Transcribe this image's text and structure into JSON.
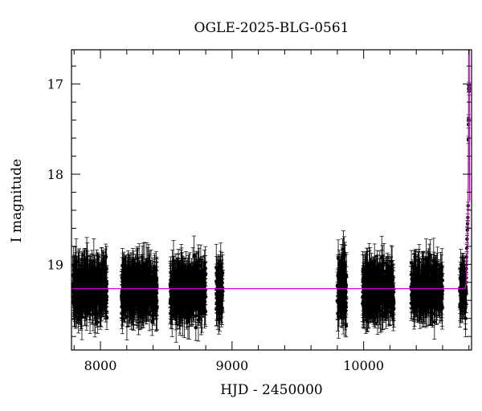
{
  "chart_data": {
    "type": "scatter",
    "title": "OGLE-2025-BLG-0561",
    "xlabel": "HJD - 2450000",
    "ylabel": "I magnitude",
    "xlim": [
      7780,
      10820
    ],
    "ylim": [
      19.95,
      16.62
    ],
    "y_inverted": true,
    "grid": false,
    "x_ticks": [
      8000,
      9000,
      10000
    ],
    "x_tick_labels": [
      "8000",
      "9000",
      "10000"
    ],
    "y_ticks": [
      17,
      18,
      19
    ],
    "y_tick_labels": [
      "17",
      "18",
      "19"
    ],
    "point_color": "#000000",
    "model_color": "#cc00cc",
    "baseline_mag": 19.27,
    "seasons": [
      {
        "start": 7790,
        "end": 8050,
        "mean": 19.28,
        "scatter": 0.13
      },
      {
        "start": 8160,
        "end": 8430,
        "mean": 19.28,
        "scatter": 0.13
      },
      {
        "start": 8530,
        "end": 8800,
        "mean": 19.3,
        "scatter": 0.14
      },
      {
        "start": 8880,
        "end": 8930,
        "mean": 19.28,
        "scatter": 0.12
      },
      {
        "start": 9800,
        "end": 9870,
        "mean": 19.25,
        "scatter": 0.15
      },
      {
        "start": 9990,
        "end": 10230,
        "mean": 19.28,
        "scatter": 0.13
      },
      {
        "start": 10360,
        "end": 10600,
        "mean": 19.27,
        "scatter": 0.12
      },
      {
        "start": 10730,
        "end": 10780,
        "mean": 19.27,
        "scatter": 0.11
      }
    ],
    "event_points": [
      {
        "x": 10780,
        "y": 19.05
      },
      {
        "x": 10782,
        "y": 18.92
      },
      {
        "x": 10784,
        "y": 18.82
      },
      {
        "x": 10786,
        "y": 18.72
      },
      {
        "x": 10788,
        "y": 18.62
      },
      {
        "x": 10790,
        "y": 18.55
      },
      {
        "x": 10792,
        "y": 18.48
      },
      {
        "x": 10794,
        "y": 18.35
      },
      {
        "x": 10796,
        "y": 17.62
      },
      {
        "x": 10797,
        "y": 17.45
      },
      {
        "x": 10798,
        "y": 17.38
      },
      {
        "x": 10799,
        "y": 17.05
      },
      {
        "x": 10800,
        "y": 17.02
      },
      {
        "x": 10801,
        "y": 17.08
      }
    ],
    "model_curve": [
      {
        "x": 7780,
        "y": 19.27
      },
      {
        "x": 10770,
        "y": 19.27
      },
      {
        "x": 10780,
        "y": 19.2
      },
      {
        "x": 10788,
        "y": 18.85
      },
      {
        "x": 10792,
        "y": 18.55
      },
      {
        "x": 10795,
        "y": 18.1
      },
      {
        "x": 10797,
        "y": 17.6
      },
      {
        "x": 10798,
        "y": 17.25
      },
      {
        "x": 10799,
        "y": 16.62
      },
      {
        "x": 10802,
        "y": 16.62
      },
      {
        "x": 10803,
        "y": 17.3
      },
      {
        "x": 10804,
        "y": 17.9
      },
      {
        "x": 10806,
        "y": 18.3
      }
    ]
  }
}
